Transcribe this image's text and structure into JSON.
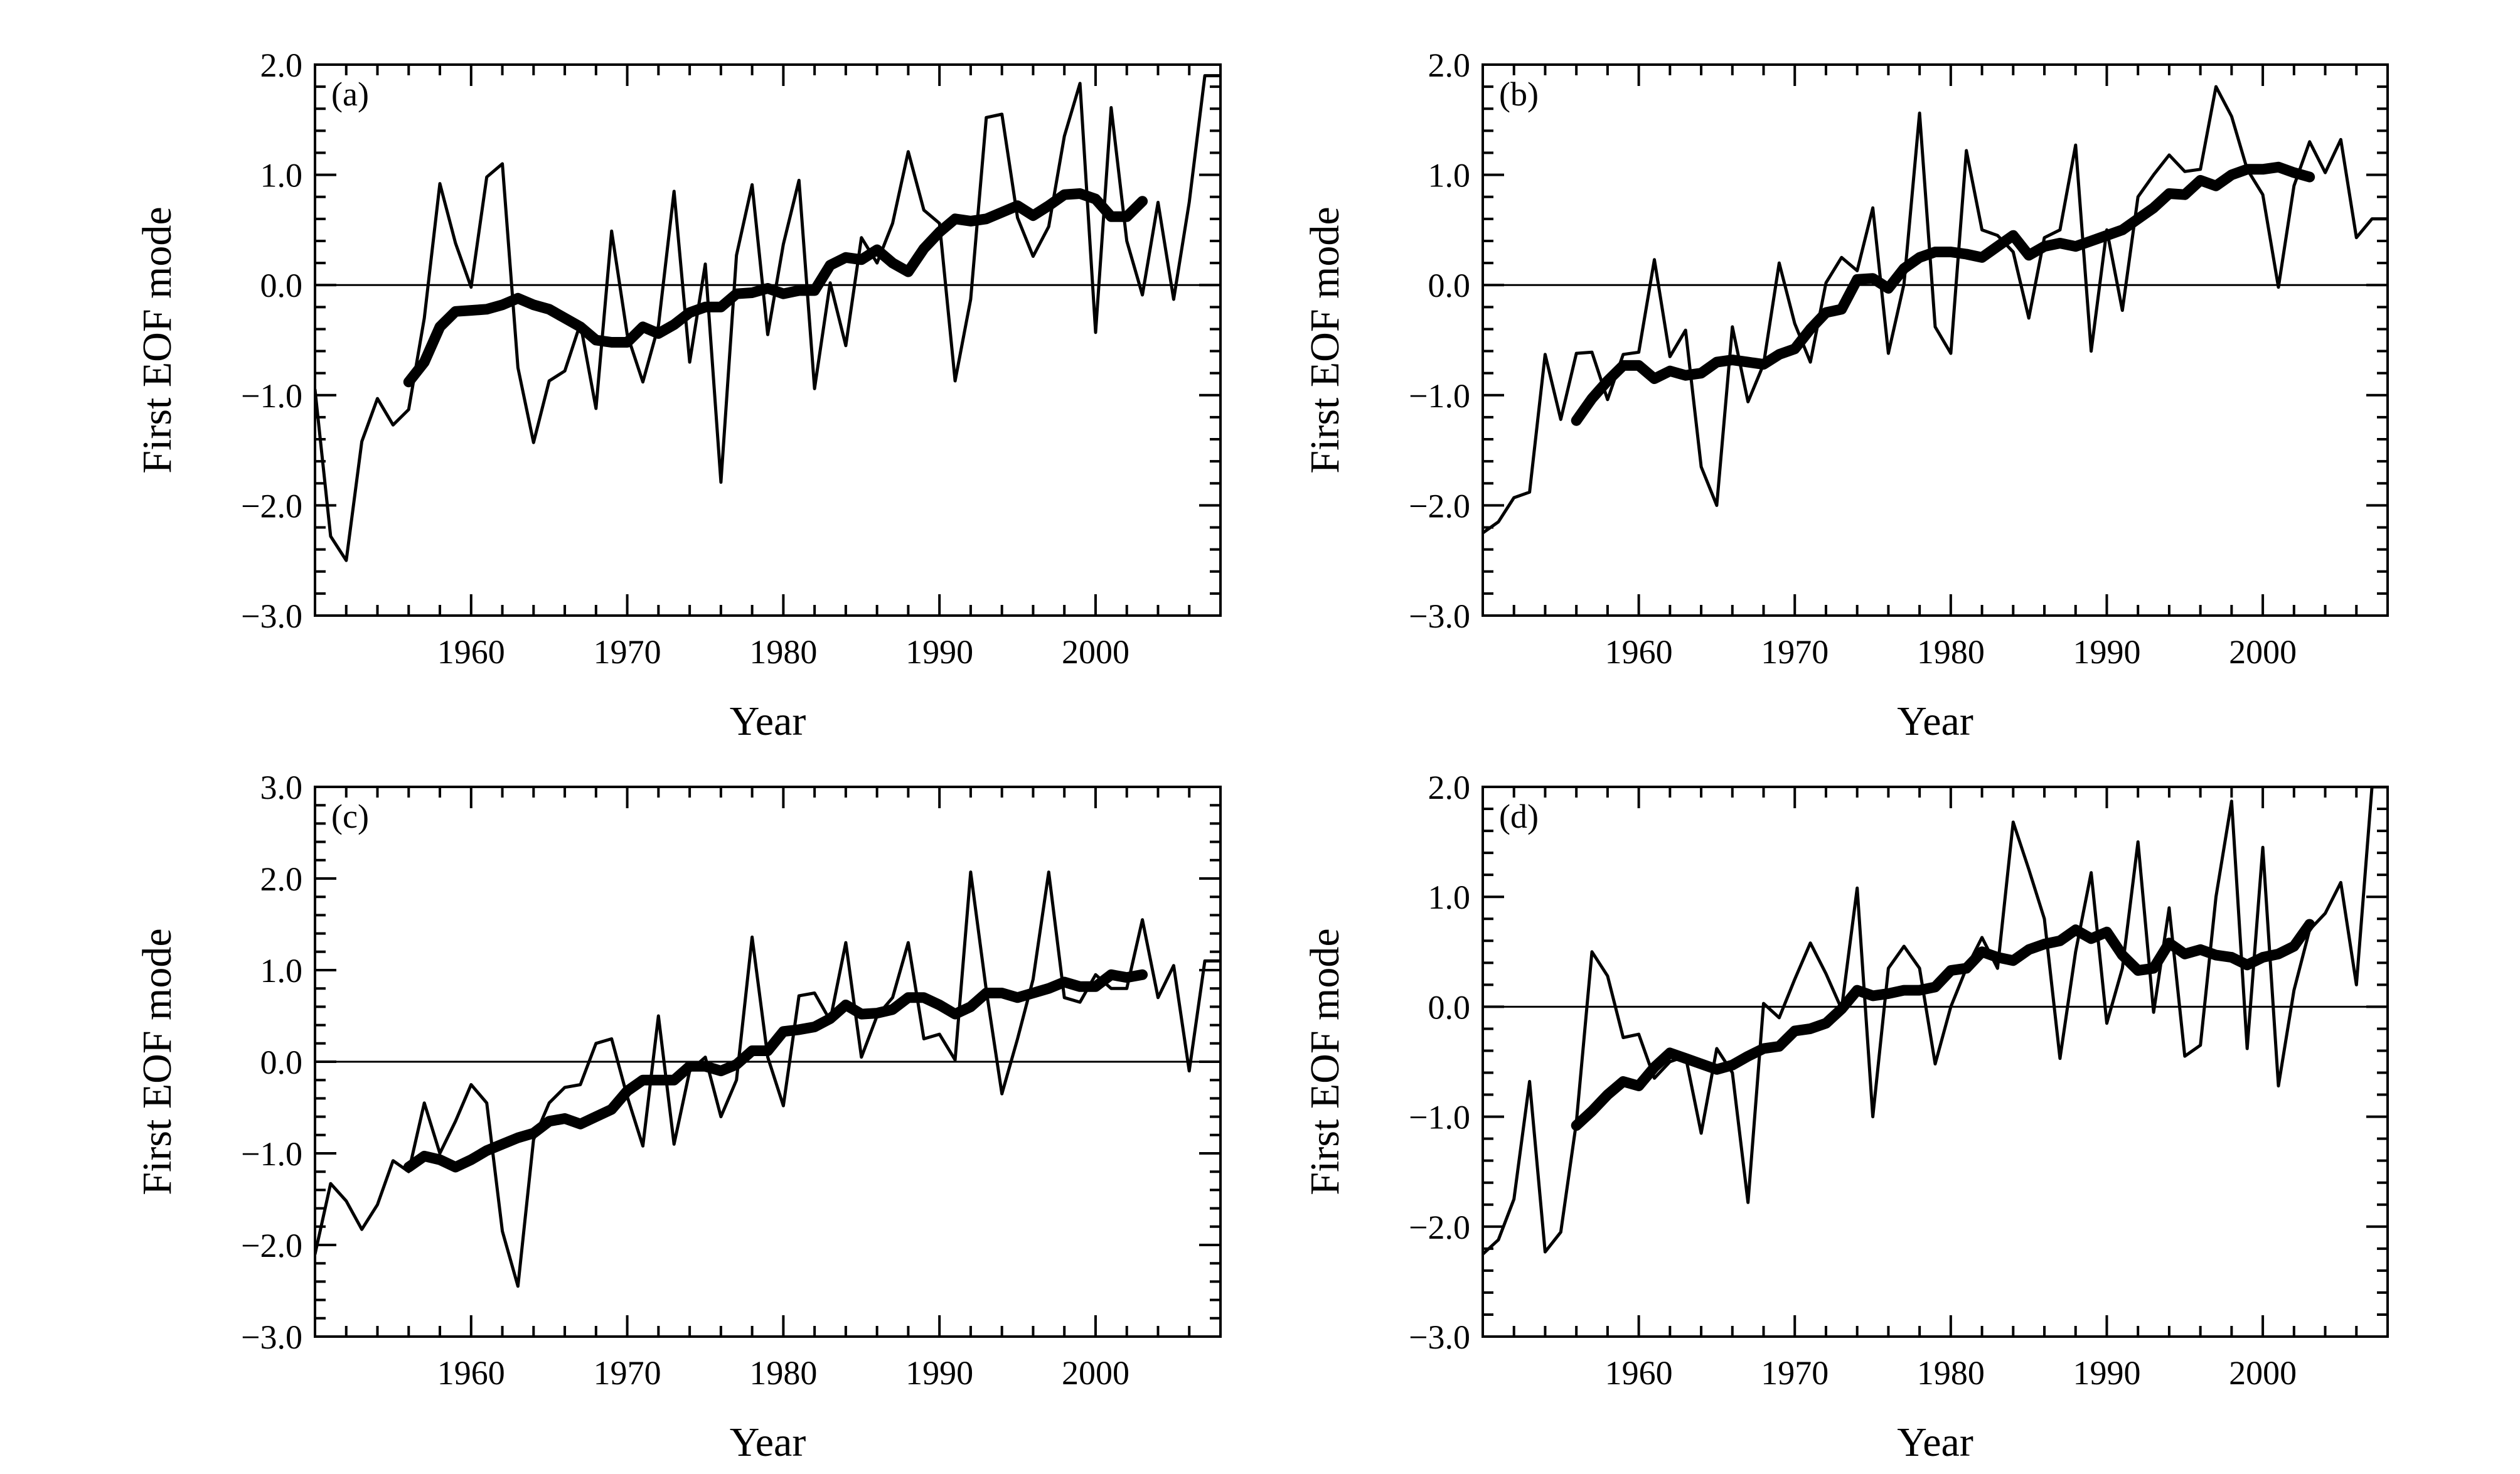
{
  "chart_data": [
    {
      "type": "line",
      "panel_label": "(a)",
      "xlabel": "Year",
      "ylabel": "First EOF mode",
      "xlim": [
        1950,
        2008
      ],
      "ylim": [
        -3.0,
        2.0
      ],
      "y_ticks": [
        "2.0",
        "1.0",
        "0.0",
        "−1.0",
        "−2.0",
        "−3.0"
      ],
      "x_ticks": [
        "1960",
        "1970",
        "1980",
        "1990",
        "2000"
      ],
      "zero_line": true,
      "series": [
        {
          "style": "thin",
          "x": [
            1950,
            1951,
            1952,
            1953,
            1954,
            1955,
            1956,
            1957,
            1958,
            1959,
            1960,
            1961,
            1962,
            1963,
            1964,
            1965,
            1966,
            1967,
            1968,
            1969,
            1970,
            1971,
            1972,
            1973,
            1974,
            1975,
            1976,
            1977,
            1978,
            1979,
            1980,
            1981,
            1982,
            1983,
            1984,
            1985,
            1986,
            1987,
            1988,
            1989,
            1990,
            1991,
            1992,
            1993,
            1994,
            1995,
            1996,
            1997,
            1998,
            1999,
            2000,
            2001,
            2002,
            2003,
            2004,
            2005,
            2006,
            2007,
            2008
          ],
          "y": [
            -0.95,
            -2.28,
            -2.5,
            -1.42,
            -1.03,
            -1.27,
            -1.13,
            -0.3,
            0.92,
            0.38,
            -0.02,
            0.98,
            1.1,
            -0.75,
            -1.43,
            -0.87,
            -0.78,
            -0.35,
            -1.12,
            0.49,
            -0.45,
            -0.88,
            -0.37,
            0.85,
            -0.7,
            0.19,
            -1.79,
            0.27,
            0.91,
            -0.45,
            0.37,
            0.95,
            -0.94,
            0.02,
            -0.55,
            0.43,
            0.2,
            0.56,
            1.21,
            0.68,
            0.56,
            -0.87,
            -0.13,
            1.52,
            1.55,
            0.61,
            0.26,
            0.53,
            1.35,
            1.83,
            -0.43,
            1.61,
            0.4,
            -0.09,
            0.75,
            -0.13,
            0.75,
            1.9,
            1.9
          ]
        },
        {
          "style": "thick",
          "x": [
            1956,
            1957,
            1958,
            1959,
            1960,
            1961,
            1962,
            1963,
            1964,
            1965,
            1966,
            1967,
            1968,
            1969,
            1970,
            1971,
            1972,
            1973,
            1974,
            1975,
            1976,
            1977,
            1978,
            1979,
            1980,
            1981,
            1982,
            1983,
            1984,
            1985,
            1986,
            1987,
            1988,
            1989,
            1990,
            1991,
            1992,
            1993,
            1994,
            1995,
            1996,
            1997,
            1998,
            1999,
            2000,
            2001,
            2002,
            2003
          ],
          "y": [
            -0.88,
            -0.7,
            -0.38,
            -0.24,
            -0.23,
            -0.22,
            -0.18,
            -0.12,
            -0.18,
            -0.22,
            -0.3,
            -0.38,
            -0.5,
            -0.52,
            -0.52,
            -0.38,
            -0.44,
            -0.36,
            -0.25,
            -0.2,
            -0.2,
            -0.08,
            -0.07,
            -0.03,
            -0.08,
            -0.05,
            -0.05,
            0.18,
            0.25,
            0.23,
            0.32,
            0.2,
            0.12,
            0.33,
            0.48,
            0.6,
            0.58,
            0.6,
            0.66,
            0.72,
            0.63,
            0.72,
            0.82,
            0.83,
            0.78,
            0.62,
            0.62,
            0.76
          ]
        }
      ]
    },
    {
      "type": "line",
      "panel_label": "(b)",
      "xlabel": "Year",
      "ylabel": "First EOF mode",
      "xlim": [
        1950,
        2008
      ],
      "ylim": [
        -3.0,
        2.0
      ],
      "y_ticks": [
        "2.0",
        "1.0",
        "0.0",
        "−1.0",
        "−2.0",
        "−3.0"
      ],
      "x_ticks": [
        "1960",
        "1970",
        "1980",
        "1990",
        "2000"
      ],
      "zero_line": true,
      "series": [
        {
          "style": "thin",
          "x": [
            1950,
            1951,
            1952,
            1953,
            1954,
            1955,
            1956,
            1957,
            1958,
            1959,
            1960,
            1961,
            1962,
            1963,
            1964,
            1965,
            1966,
            1967,
            1968,
            1969,
            1970,
            1971,
            1972,
            1973,
            1974,
            1975,
            1976,
            1977,
            1978,
            1979,
            1980,
            1981,
            1982,
            1983,
            1984,
            1985,
            1986,
            1987,
            1988,
            1989,
            1990,
            1991,
            1992,
            1993,
            1994,
            1995,
            1996,
            1997,
            1998,
            1999,
            2000,
            2001,
            2002,
            2003,
            2004,
            2005,
            2006,
            2007,
            2008
          ],
          "y": [
            -2.25,
            -2.15,
            -1.93,
            -1.88,
            -0.63,
            -1.22,
            -0.62,
            -0.61,
            -1.04,
            -0.63,
            -0.61,
            0.23,
            -0.65,
            -0.41,
            -1.65,
            -2.0,
            -0.38,
            -1.06,
            -0.72,
            0.2,
            -0.35,
            -0.7,
            0.02,
            0.25,
            0.13,
            0.7,
            -0.62,
            0.01,
            1.56,
            -0.38,
            -0.62,
            1.22,
            0.5,
            0.45,
            0.3,
            -0.3,
            0.43,
            0.5,
            1.27,
            -0.6,
            0.5,
            -0.23,
            0.8,
            1.0,
            1.18,
            1.03,
            1.05,
            1.8,
            1.53,
            1.05,
            0.82,
            -0.02,
            0.9,
            1.3,
            1.02,
            1.32,
            0.43,
            0.6,
            0.6
          ]
        },
        {
          "style": "thick",
          "x": [
            1956,
            1957,
            1958,
            1959,
            1960,
            1961,
            1962,
            1963,
            1964,
            1965,
            1966,
            1967,
            1968,
            1969,
            1970,
            1971,
            1972,
            1973,
            1974,
            1975,
            1976,
            1977,
            1978,
            1979,
            1980,
            1981,
            1982,
            1983,
            1984,
            1985,
            1986,
            1987,
            1988,
            1989,
            1990,
            1991,
            1992,
            1993,
            1994,
            1995,
            1996,
            1997,
            1998,
            1999,
            2000,
            2001,
            2002,
            2003
          ],
          "y": [
            -1.23,
            -1.03,
            -0.87,
            -0.73,
            -0.73,
            -0.85,
            -0.78,
            -0.82,
            -0.8,
            -0.7,
            -0.68,
            -0.7,
            -0.72,
            -0.63,
            -0.58,
            -0.4,
            -0.25,
            -0.22,
            0.05,
            0.06,
            -0.03,
            0.15,
            0.25,
            0.3,
            0.3,
            0.28,
            0.25,
            0.35,
            0.45,
            0.27,
            0.35,
            0.38,
            0.35,
            0.4,
            0.45,
            0.5,
            0.6,
            0.7,
            0.83,
            0.82,
            0.95,
            0.9,
            1.0,
            1.05,
            1.05,
            1.07,
            1.02,
            0.98
          ]
        }
      ]
    },
    {
      "type": "line",
      "panel_label": "(c)",
      "xlabel": "Year",
      "ylabel": "First EOF mode",
      "xlim": [
        1950,
        2008
      ],
      "ylim": [
        -3.0,
        3.0
      ],
      "y_ticks": [
        "3.0",
        "2.0",
        "1.0",
        "0.0",
        "−1.0",
        "−2.0",
        "−3.0"
      ],
      "x_ticks": [
        "1960",
        "1970",
        "1980",
        "1990",
        "2000"
      ],
      "zero_line": true,
      "series": [
        {
          "style": "thin",
          "x": [
            1950,
            1951,
            1952,
            1953,
            1954,
            1955,
            1956,
            1957,
            1958,
            1959,
            1960,
            1961,
            1962,
            1963,
            1964,
            1965,
            1966,
            1967,
            1968,
            1969,
            1970,
            1971,
            1972,
            1973,
            1974,
            1975,
            1976,
            1977,
            1978,
            1979,
            1980,
            1981,
            1982,
            1983,
            1984,
            1985,
            1986,
            1987,
            1988,
            1989,
            1990,
            1991,
            1992,
            1993,
            1994,
            1995,
            1996,
            1997,
            1998,
            1999,
            2000,
            2001,
            2002,
            2003,
            2004,
            2005,
            2006,
            2007,
            2008
          ],
          "y": [
            -2.1,
            -1.33,
            -1.52,
            -1.83,
            -1.56,
            -1.08,
            -1.2,
            -0.45,
            -1.0,
            -0.65,
            -0.25,
            -0.45,
            -1.85,
            -2.45,
            -0.85,
            -0.45,
            -0.28,
            -0.25,
            0.2,
            0.25,
            -0.38,
            -0.92,
            0.5,
            -0.9,
            -0.1,
            0.05,
            -0.6,
            -0.2,
            1.36,
            0.05,
            -0.48,
            0.72,
            0.75,
            0.45,
            1.3,
            0.05,
            0.5,
            0.7,
            1.3,
            0.25,
            0.3,
            0.02,
            2.07,
            0.78,
            -0.35,
            0.25,
            0.9,
            2.07,
            0.7,
            0.65,
            0.95,
            0.8,
            0.8,
            1.55,
            0.7,
            1.05,
            -0.1,
            1.1,
            1.1
          ]
        },
        {
          "style": "thick",
          "x": [
            1956,
            1957,
            1958,
            1959,
            1960,
            1961,
            1962,
            1963,
            1964,
            1965,
            1966,
            1967,
            1968,
            1969,
            1970,
            1971,
            1972,
            1973,
            1974,
            1975,
            1976,
            1977,
            1978,
            1979,
            1980,
            1981,
            1982,
            1983,
            1984,
            1985,
            1986,
            1987,
            1988,
            1989,
            1990,
            1991,
            1992,
            1993,
            1994,
            1995,
            1996,
            1997,
            1998,
            1999,
            2000,
            2001,
            2002,
            2003
          ],
          "y": [
            -1.15,
            -1.03,
            -1.07,
            -1.15,
            -1.07,
            -0.97,
            -0.9,
            -0.83,
            -0.78,
            -0.65,
            -0.62,
            -0.68,
            -0.6,
            -0.52,
            -0.32,
            -0.2,
            -0.2,
            -0.2,
            -0.05,
            -0.05,
            -0.1,
            -0.03,
            0.12,
            0.12,
            0.33,
            0.35,
            0.38,
            0.47,
            0.62,
            0.52,
            0.53,
            0.57,
            0.7,
            0.7,
            0.62,
            0.52,
            0.6,
            0.75,
            0.75,
            0.7,
            0.75,
            0.8,
            0.87,
            0.82,
            0.82,
            0.95,
            0.92,
            0.95
          ]
        }
      ]
    },
    {
      "type": "line",
      "panel_label": "(d)",
      "xlabel": "Year",
      "ylabel": "First EOF mode",
      "xlim": [
        1950,
        2008
      ],
      "ylim": [
        -3.0,
        2.0
      ],
      "y_ticks": [
        "2.0",
        "1.0",
        "0.0",
        "−1.0",
        "−2.0",
        "−3.0"
      ],
      "x_ticks": [
        "1960",
        "1970",
        "1980",
        "1990",
        "2000"
      ],
      "zero_line": true,
      "series": [
        {
          "style": "thin",
          "x": [
            1950,
            1951,
            1952,
            1953,
            1954,
            1955,
            1956,
            1957,
            1958,
            1959,
            1960,
            1961,
            1962,
            1963,
            1964,
            1965,
            1966,
            1967,
            1968,
            1969,
            1970,
            1971,
            1972,
            1973,
            1974,
            1975,
            1976,
            1977,
            1978,
            1979,
            1980,
            1981,
            1982,
            1983,
            1984,
            1985,
            1986,
            1987,
            1988,
            1989,
            1990,
            1991,
            1992,
            1993,
            1994,
            1995,
            1996,
            1997,
            1998,
            1999,
            2000,
            2001,
            2002,
            2003,
            2004,
            2005,
            2006,
            2007,
            2008
          ],
          "y": [
            -2.25,
            -2.12,
            -1.75,
            -0.68,
            -2.23,
            -2.05,
            -1.05,
            0.5,
            0.28,
            -0.28,
            -0.25,
            -0.65,
            -0.5,
            -0.45,
            -1.15,
            -0.38,
            -0.6,
            -1.78,
            0.03,
            -0.1,
            0.25,
            0.58,
            0.3,
            -0.02,
            1.08,
            -1.0,
            0.35,
            0.55,
            0.35,
            -0.52,
            0.0,
            0.35,
            0.63,
            0.35,
            1.68,
            1.25,
            0.8,
            -0.47,
            0.5,
            1.22,
            -0.15,
            0.35,
            1.5,
            -0.05,
            0.9,
            -0.45,
            -0.35,
            1.0,
            1.87,
            -0.38,
            1.45,
            -0.72,
            0.15,
            0.7,
            0.85,
            1.13,
            0.2,
            2.0,
            2.0
          ]
        },
        {
          "style": "thick",
          "x": [
            1956,
            1957,
            1958,
            1959,
            1960,
            1961,
            1962,
            1963,
            1964,
            1965,
            1966,
            1967,
            1968,
            1969,
            1970,
            1971,
            1972,
            1973,
            1974,
            1975,
            1976,
            1977,
            1978,
            1979,
            1980,
            1981,
            1982,
            1983,
            1984,
            1985,
            1986,
            1987,
            1988,
            1989,
            1990,
            1991,
            1992,
            1993,
            1994,
            1995,
            1996,
            1997,
            1998,
            1999,
            2000,
            2001,
            2002,
            2003
          ],
          "y": [
            -1.08,
            -0.95,
            -0.8,
            -0.68,
            -0.72,
            -0.55,
            -0.42,
            -0.47,
            -0.52,
            -0.57,
            -0.53,
            -0.45,
            -0.38,
            -0.36,
            -0.22,
            -0.2,
            -0.15,
            -0.02,
            0.15,
            0.1,
            0.12,
            0.15,
            0.15,
            0.18,
            0.33,
            0.35,
            0.5,
            0.45,
            0.42,
            0.52,
            0.57,
            0.6,
            0.7,
            0.62,
            0.68,
            0.47,
            0.33,
            0.35,
            0.58,
            0.48,
            0.52,
            0.47,
            0.45,
            0.38,
            0.45,
            0.48,
            0.55,
            0.75
          ]
        }
      ]
    }
  ]
}
